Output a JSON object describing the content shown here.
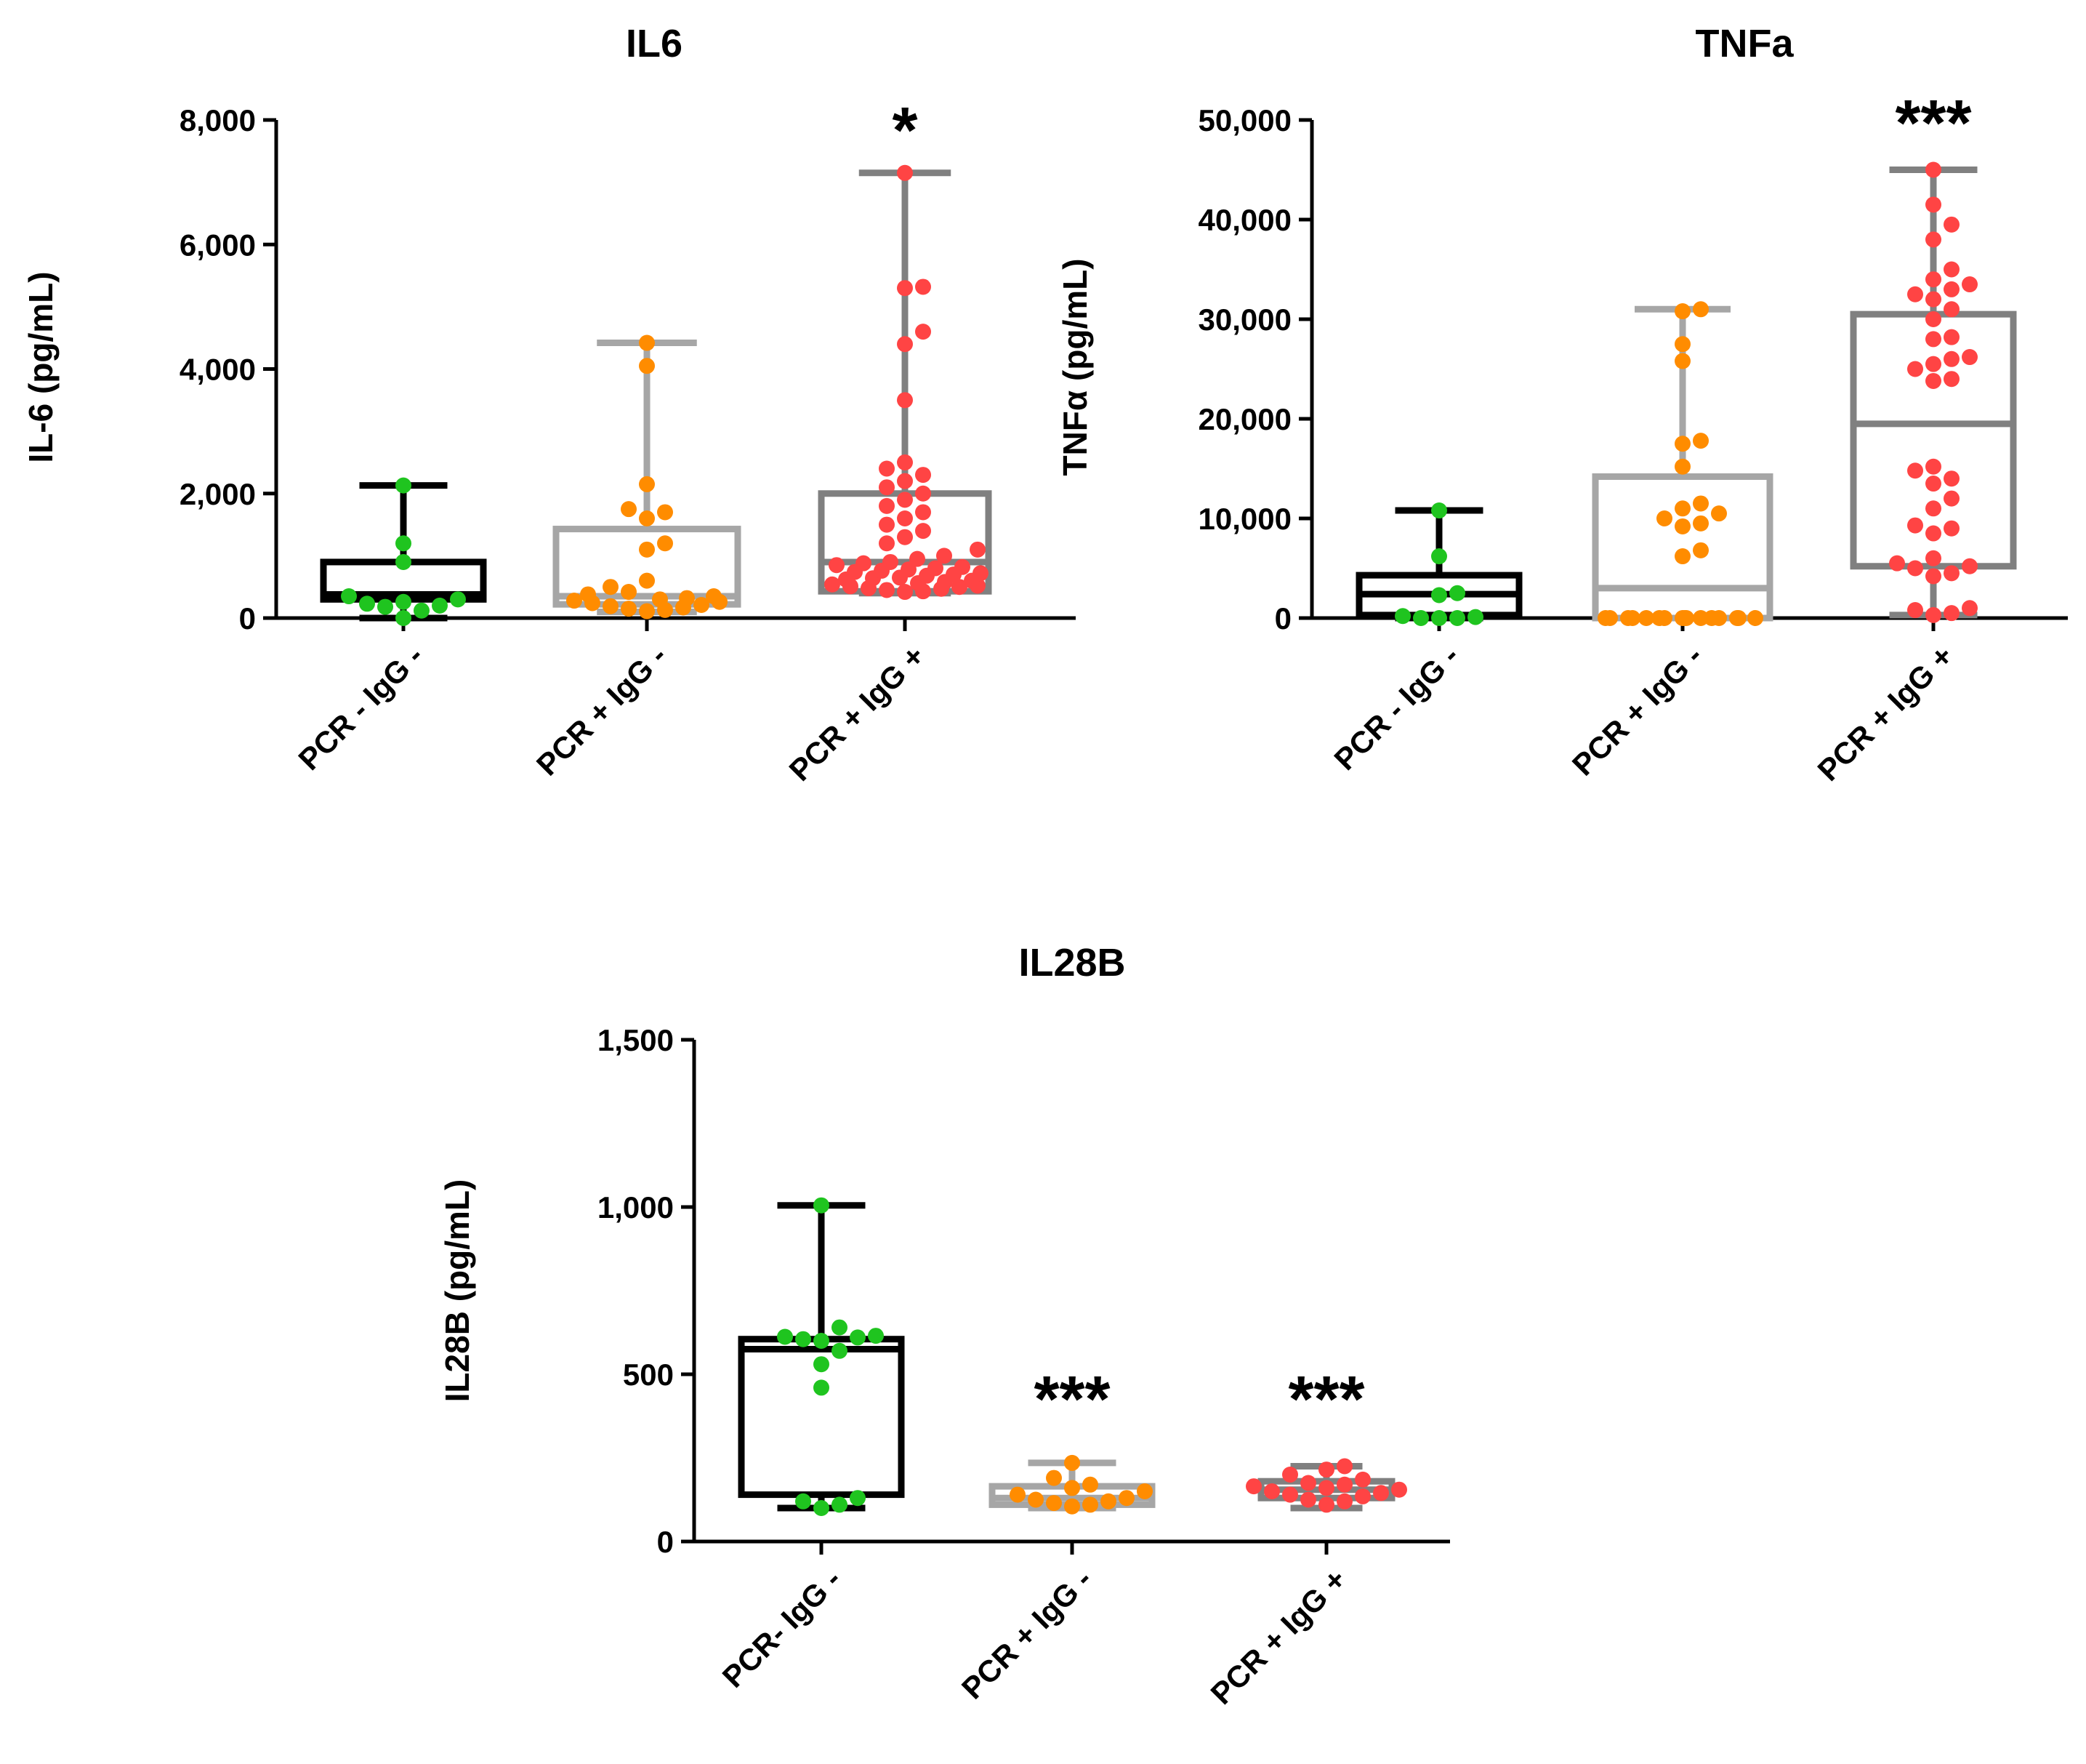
{
  "chart_data": [
    {
      "type": "box",
      "title": "IL6",
      "xlabel": "",
      "ylabel": "IL-6 (pg/mL)",
      "ylim": [
        0,
        8000
      ],
      "yticks": [
        0,
        2000,
        4000,
        6000,
        8000
      ],
      "ytick_labels": [
        "0",
        "2,000",
        "4,000",
        "6,000",
        "8,000"
      ],
      "categories": [
        "PCR - IgG -",
        "PCR + IgG -",
        "PCR + IgG +"
      ],
      "series": [
        {
          "name": "PCR - IgG -",
          "color": "#1fc41f",
          "box_color": "#000000",
          "box": {
            "min": 0,
            "q1": 300,
            "median": 380,
            "q3": 900,
            "max": 2130
          },
          "points": [
            0,
            120,
            180,
            200,
            230,
            260,
            300,
            350,
            900,
            1200,
            2130
          ],
          "significance": ""
        },
        {
          "name": "PCR + IgG -",
          "color": "#ff8c00",
          "box_color": "#a6a6a6",
          "box": {
            "min": 100,
            "q1": 220,
            "median": 350,
            "q3": 1430,
            "max": 4420
          },
          "points": [
            110,
            130,
            150,
            170,
            190,
            210,
            240,
            260,
            280,
            300,
            320,
            350,
            380,
            420,
            500,
            600,
            1100,
            1200,
            1600,
            1700,
            1750,
            2150,
            4050,
            4420
          ],
          "significance": ""
        },
        {
          "name": "PCR + IgG +",
          "color": "#ff4444",
          "box_color": "#808080",
          "box": {
            "min": 400,
            "q1": 430,
            "median": 900,
            "q3": 2000,
            "max": 7150
          },
          "points": [
            420,
            430,
            450,
            470,
            480,
            500,
            510,
            520,
            540,
            560,
            580,
            600,
            620,
            640,
            650,
            680,
            700,
            720,
            740,
            760,
            780,
            800,
            820,
            850,
            880,
            900,
            950,
            1000,
            1100,
            1200,
            1300,
            1400,
            1500,
            1600,
            1700,
            1800,
            1900,
            2000,
            2100,
            2200,
            2300,
            2400,
            2500,
            3500,
            4400,
            4600,
            5300,
            5320,
            7150
          ],
          "significance": "*"
        }
      ]
    },
    {
      "type": "box",
      "title": "TNFa",
      "xlabel": "",
      "ylabel": "TNFα (pg/mL)",
      "ylim": [
        0,
        50000
      ],
      "yticks": [
        0,
        10000,
        20000,
        30000,
        40000,
        50000
      ],
      "ytick_labels": [
        "0",
        "10,000",
        "20,000",
        "30,000",
        "40,000",
        "50,000"
      ],
      "categories": [
        "PCR - IgG -",
        "PCR + IgG -",
        "PCR + IgG +"
      ],
      "series": [
        {
          "name": "PCR - IgG -",
          "color": "#1fc41f",
          "box_color": "#000000",
          "box": {
            "min": 0,
            "q1": 300,
            "median": 2400,
            "q3": 4300,
            "max": 10800
          },
          "points": [
            0,
            0,
            0,
            100,
            200,
            2300,
            2500,
            6200,
            10800
          ],
          "significance": ""
        },
        {
          "name": "PCR + IgG -",
          "color": "#ff8c00",
          "box_color": "#a6a6a6",
          "box": {
            "min": 0,
            "q1": 0,
            "median": 3000,
            "q3": 14200,
            "max": 31000
          },
          "points": [
            0,
            0,
            0,
            0,
            0,
            0,
            0,
            0,
            0,
            0,
            0,
            0,
            0,
            0,
            0,
            0,
            6200,
            6800,
            9200,
            9500,
            10000,
            10500,
            11000,
            11500,
            15200,
            17500,
            17800,
            25800,
            27500,
            30800,
            31000
          ],
          "significance": ""
        },
        {
          "name": "PCR + IgG +",
          "color": "#ff4444",
          "box_color": "#808080",
          "box": {
            "min": 300,
            "q1": 5200,
            "median": 19500,
            "q3": 30500,
            "max": 45000
          },
          "points": [
            300,
            500,
            800,
            1000,
            4200,
            4500,
            5000,
            5200,
            5500,
            6000,
            8500,
            9000,
            9300,
            11000,
            12000,
            13500,
            14000,
            14800,
            15200,
            23800,
            24000,
            25000,
            25500,
            26000,
            26200,
            28000,
            28200,
            30000,
            31000,
            32000,
            32500,
            33000,
            33500,
            34000,
            35000,
            38000,
            39500,
            41500,
            45000
          ],
          "significance": "***"
        }
      ]
    },
    {
      "type": "box",
      "title": "IL28B",
      "xlabel": "",
      "ylabel": "IL28B (pg/mL)",
      "ylim": [
        0,
        1500
      ],
      "yticks": [
        0,
        500,
        1000,
        1500
      ],
      "ytick_labels": [
        "0",
        "500",
        "1,000",
        "1,500"
      ],
      "categories": [
        "PCR- IgG -",
        "PCR + IgG -",
        "PCR + IgG +"
      ],
      "series": [
        {
          "name": "PCR- IgG -",
          "color": "#1fc41f",
          "box_color": "#000000",
          "box": {
            "min": 100,
            "q1": 140,
            "median": 575,
            "q3": 605,
            "max": 1005
          },
          "points": [
            100,
            110,
            120,
            130,
            460,
            530,
            570,
            600,
            605,
            610,
            612,
            615,
            640,
            1005
          ],
          "significance": ""
        },
        {
          "name": "PCR + IgG -",
          "color": "#ff8c00",
          "box_color": "#a6a6a6",
          "box": {
            "min": 100,
            "q1": 110,
            "median": 130,
            "q3": 165,
            "max": 235
          },
          "points": [
            105,
            110,
            115,
            120,
            125,
            130,
            140,
            150,
            160,
            170,
            190,
            235
          ],
          "significance": "***"
        },
        {
          "name": "PCR + IgG +",
          "color": "#ff4444",
          "box_color": "#808080",
          "box": {
            "min": 100,
            "q1": 130,
            "median": 155,
            "q3": 180,
            "max": 225
          },
          "points": [
            110,
            120,
            125,
            135,
            140,
            145,
            150,
            155,
            160,
            165,
            170,
            175,
            185,
            200,
            215,
            225
          ],
          "significance": "***"
        }
      ]
    }
  ]
}
